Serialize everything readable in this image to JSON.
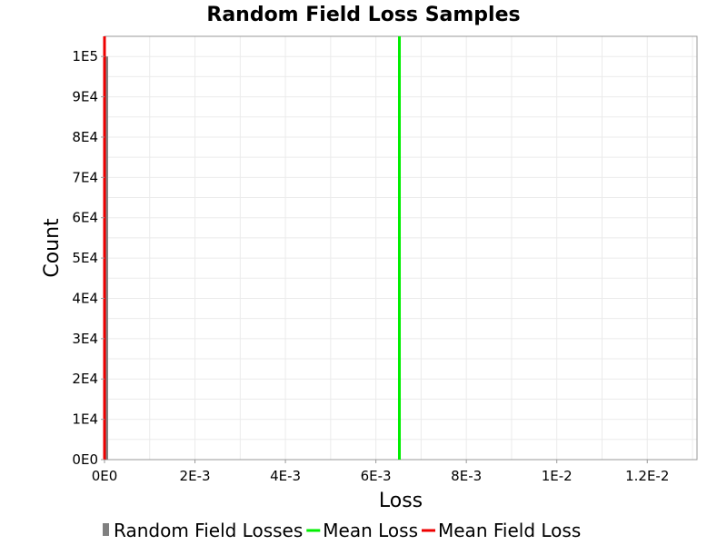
{
  "chart_data": {
    "type": "bar",
    "title": "Random Field Loss Samples",
    "xlabel": "Loss",
    "ylabel": "Count",
    "xlim": [
      0,
      0.0131
    ],
    "ylim": [
      0,
      105000
    ],
    "x_ticks": [
      {
        "value": 0,
        "label": "0E0"
      },
      {
        "value": 0.002,
        "label": "2E-3"
      },
      {
        "value": 0.004,
        "label": "4E-3"
      },
      {
        "value": 0.006,
        "label": "6E-3"
      },
      {
        "value": 0.008,
        "label": "8E-3"
      },
      {
        "value": 0.01,
        "label": "1E-2"
      },
      {
        "value": 0.012,
        "label": "1.2E-2"
      }
    ],
    "y_ticks": [
      {
        "value": 0,
        "label": "0E0"
      },
      {
        "value": 10000,
        "label": "1E4"
      },
      {
        "value": 20000,
        "label": "2E4"
      },
      {
        "value": 30000,
        "label": "3E4"
      },
      {
        "value": 40000,
        "label": "4E4"
      },
      {
        "value": 50000,
        "label": "5E4"
      },
      {
        "value": 60000,
        "label": "6E4"
      },
      {
        "value": 70000,
        "label": "7E4"
      },
      {
        "value": 80000,
        "label": "8E4"
      },
      {
        "value": 90000,
        "label": "9E4"
      },
      {
        "value": 100000,
        "label": "1E5"
      }
    ],
    "grid": true,
    "legend_position": "bottom",
    "series": [
      {
        "name": "Random Field Losses",
        "kind": "histogram",
        "color": "#808080",
        "bins": [
          {
            "x0": 0,
            "x1": 8e-05,
            "count": 100000
          }
        ]
      },
      {
        "name": "Mean Loss",
        "kind": "vline",
        "color": "#00ee00",
        "x": 0.00652
      },
      {
        "name": "Mean Field Loss",
        "kind": "vline",
        "color": "#ee0000",
        "x": 0.0
      }
    ]
  }
}
